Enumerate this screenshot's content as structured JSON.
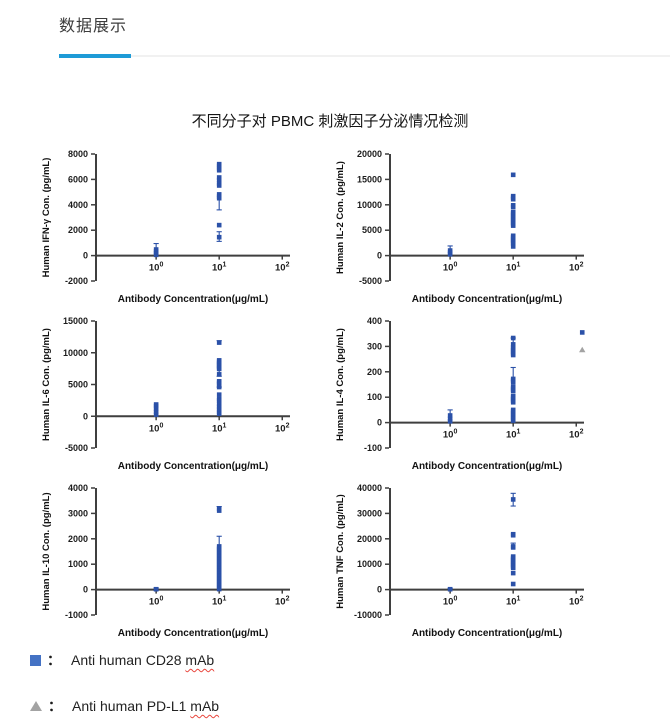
{
  "colors": {
    "accent": "#1e9bd7",
    "point_blue": "#2b51a8",
    "legend_blue": "#4472c4",
    "triangle_gray": "#a3a3a3",
    "axis": "#3f3f3f",
    "tick_text": "#1c1c1c"
  },
  "header": {
    "title": "数据展示"
  },
  "figure": {
    "title": "不同分子对 PBMC 刺激因子分泌情况检测"
  },
  "x_axis": {
    "label": "Antibody Concentration(μg/mL)",
    "ticks": [
      {
        "v": 1,
        "base": "10",
        "exp": "0"
      },
      {
        "v": 10,
        "base": "10",
        "exp": "1"
      },
      {
        "v": 100,
        "base": "10",
        "exp": "2"
      }
    ]
  },
  "chart_data": [
    {
      "id": "ifn-gamma",
      "type": "scatter",
      "ylabel": "Human IFN-γ Con. (pg/mL)",
      "ylim": [
        -2000,
        8000
      ],
      "yticks": [
        -2000,
        0,
        2000,
        4000,
        6000,
        8000
      ],
      "squares": [
        [
          1,
          60
        ],
        [
          1,
          180
        ],
        [
          1,
          320
        ],
        [
          1,
          480,
          0,
          470
        ],
        [
          10,
          7200
        ],
        [
          10,
          7060
        ],
        [
          10,
          6880
        ],
        [
          10,
          6720
        ],
        [
          10,
          6150
        ],
        [
          10,
          5950
        ],
        [
          10,
          5680
        ],
        [
          10,
          5520
        ],
        [
          10,
          4820
        ],
        [
          10,
          4650,
          1050,
          0
        ],
        [
          10,
          4520
        ],
        [
          10,
          2400
        ],
        [
          10,
          1450,
          330,
          430
        ]
      ],
      "triangles": []
    },
    {
      "id": "il-2",
      "type": "scatter",
      "ylabel": "Human IL-2 Con. (pg/mL)",
      "ylim": [
        -5000,
        20000
      ],
      "yticks": [
        -5000,
        0,
        5000,
        10000,
        15000,
        20000
      ],
      "squares": [
        [
          1,
          250
        ],
        [
          1,
          600
        ],
        [
          1,
          1000,
          0,
          900
        ],
        [
          10,
          15900
        ],
        [
          10,
          11700
        ],
        [
          10,
          11400
        ],
        [
          10,
          11100
        ],
        [
          10,
          9900
        ],
        [
          10,
          9600
        ],
        [
          10,
          8600
        ],
        [
          10,
          8300
        ],
        [
          10,
          8000
        ],
        [
          10,
          7700
        ],
        [
          10,
          7400
        ],
        [
          10,
          7100
        ],
        [
          10,
          6800
        ],
        [
          10,
          6500
        ],
        [
          10,
          6200
        ],
        [
          10,
          5900
        ],
        [
          10,
          3900
        ],
        [
          10,
          3600
        ],
        [
          10,
          3300
        ],
        [
          10,
          3000
        ],
        [
          10,
          2700
        ],
        [
          10,
          2400
        ],
        [
          10,
          1800
        ]
      ],
      "triangles": []
    },
    {
      "id": "il-6",
      "type": "scatter",
      "ylabel": "Human IL-6 Con. (pg/mL)",
      "ylim": [
        -5000,
        15000
      ],
      "yticks": [
        -5000,
        0,
        5000,
        10000,
        15000
      ],
      "squares": [
        [
          1,
          250
        ],
        [
          1,
          700
        ],
        [
          1,
          1150
        ],
        [
          1,
          1600
        ],
        [
          1,
          1850
        ],
        [
          10,
          11600,
          0,
          300
        ],
        [
          10,
          8800
        ],
        [
          10,
          8600
        ],
        [
          10,
          8400
        ],
        [
          10,
          8200
        ],
        [
          10,
          8000
        ],
        [
          10,
          7800
        ],
        [
          10,
          7600
        ],
        [
          10,
          7450,
          1150,
          0
        ],
        [
          10,
          6600
        ],
        [
          10,
          5500
        ],
        [
          10,
          5300
        ],
        [
          10,
          5100,
          500,
          0
        ],
        [
          10,
          4600
        ],
        [
          10,
          3400
        ],
        [
          10,
          2700
        ],
        [
          10,
          2500
        ],
        [
          10,
          1900
        ],
        [
          10,
          1500
        ],
        [
          10,
          1100
        ],
        [
          10,
          700
        ],
        [
          10,
          400
        ]
      ],
      "triangles": []
    },
    {
      "id": "il-4",
      "type": "scatter",
      "ylabel": "Human IL-4 Con. (pg/mL)",
      "ylim": [
        -100,
        400
      ],
      "yticks": [
        -100,
        0,
        100,
        200,
        300,
        400
      ],
      "squares": [
        [
          1,
          5
        ],
        [
          1,
          15
        ],
        [
          1,
          28,
          0,
          22
        ],
        [
          10,
          333
        ],
        [
          10,
          308,
          0,
          25
        ],
        [
          10,
          296
        ],
        [
          10,
          290
        ],
        [
          10,
          284
        ],
        [
          10,
          278
        ],
        [
          10,
          272
        ],
        [
          10,
          266
        ],
        [
          10,
          172,
          0,
          45
        ],
        [
          10,
          166
        ],
        [
          10,
          160
        ],
        [
          10,
          142
        ],
        [
          10,
          136
        ],
        [
          10,
          130
        ],
        [
          10,
          124
        ],
        [
          10,
          104
        ],
        [
          10,
          98
        ],
        [
          10,
          92
        ],
        [
          10,
          86
        ],
        [
          10,
          80
        ],
        [
          10,
          50
        ],
        [
          10,
          44
        ],
        [
          10,
          38
        ],
        [
          10,
          32
        ],
        [
          10,
          26
        ],
        [
          10,
          20
        ],
        [
          10,
          14
        ],
        [
          10,
          8
        ],
        [
          100,
          355
        ]
      ],
      "triangles": [
        [
          100,
          287
        ]
      ]
    },
    {
      "id": "il-10",
      "type": "scatter",
      "ylabel": "Human IL-10 Con. (pg/mL)",
      "ylim": [
        -1000,
        4000
      ],
      "yticks": [
        -1000,
        0,
        1000,
        2000,
        3000,
        4000
      ],
      "squares": [
        [
          1,
          15,
          50,
          50
        ],
        [
          10,
          3180,
          0,
          90
        ],
        [
          10,
          3110
        ],
        [
          10,
          1700,
          0,
          400
        ],
        [
          10,
          1640
        ],
        [
          10,
          1580
        ],
        [
          10,
          1520
        ],
        [
          10,
          1460
        ],
        [
          10,
          1400
        ],
        [
          10,
          1340
        ],
        [
          10,
          1280
        ],
        [
          10,
          1220
        ],
        [
          10,
          1160
        ],
        [
          10,
          1100
        ],
        [
          10,
          1040
        ],
        [
          10,
          980
        ],
        [
          10,
          920
        ],
        [
          10,
          860
        ],
        [
          10,
          800
        ],
        [
          10,
          740
        ],
        [
          10,
          680
        ],
        [
          10,
          620
        ],
        [
          10,
          560
        ],
        [
          10,
          500
        ],
        [
          10,
          440
        ],
        [
          10,
          380
        ],
        [
          10,
          320
        ],
        [
          10,
          260
        ],
        [
          10,
          200
        ],
        [
          10,
          140
        ],
        [
          10,
          80
        ],
        [
          10,
          20
        ]
      ],
      "triangles": []
    },
    {
      "id": "tnf",
      "type": "scatter",
      "ylabel": "Human TNF Con. (pg/mL)",
      "ylim": [
        -10000,
        40000
      ],
      "yticks": [
        -10000,
        0,
        10000,
        20000,
        30000,
        40000
      ],
      "squares": [
        [
          1,
          150,
          0,
          350
        ],
        [
          10,
          35500,
          2600,
          2400
        ],
        [
          10,
          21800
        ],
        [
          10,
          21400
        ],
        [
          10,
          17000,
          0,
          1300
        ],
        [
          10,
          16600
        ],
        [
          10,
          13000
        ],
        [
          10,
          12500
        ],
        [
          10,
          12000
        ],
        [
          10,
          11500
        ],
        [
          10,
          11000
        ],
        [
          10,
          10500
        ],
        [
          10,
          10000
        ],
        [
          10,
          9500
        ],
        [
          10,
          9000
        ],
        [
          10,
          8600
        ],
        [
          10,
          6500
        ],
        [
          10,
          2200
        ]
      ],
      "triangles": []
    }
  ],
  "legend": {
    "items": [
      {
        "marker": "square",
        "colon": "：",
        "label_prefix": "Anti human CD28 ",
        "label_underlined": "mAb"
      },
      {
        "marker": "triangle",
        "colon": "：",
        "label_prefix": "Anti human PD-L1 ",
        "label_underlined": "mAb"
      }
    ]
  }
}
